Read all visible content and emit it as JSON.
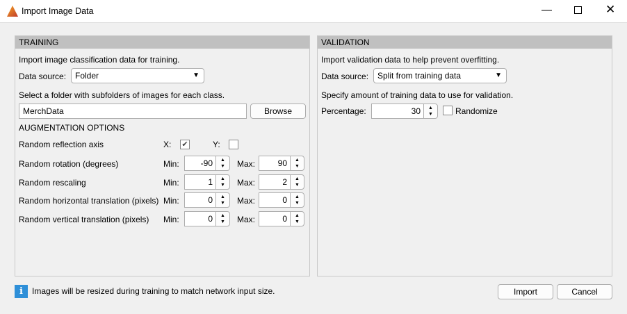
{
  "window": {
    "title": "Import Image Data"
  },
  "training": {
    "header": "TRAINING",
    "intro": "Import image classification data for training.",
    "data_source_label": "Data source:",
    "data_source_value": "Folder",
    "folder_prompt": "Select a folder with subfolders of images for each class.",
    "folder_value": "MerchData",
    "browse_label": "Browse",
    "augmentation_header": "AUGMENTATION OPTIONS",
    "reflection": {
      "label": "Random reflection axis",
      "x_label": "X:",
      "x_checked": true,
      "y_label": "Y:",
      "y_checked": false
    },
    "rows": [
      {
        "label": "Random rotation (degrees)",
        "min_label": "Min:",
        "min": "-90",
        "max_label": "Max:",
        "max": "90"
      },
      {
        "label": "Random rescaling",
        "min_label": "Min:",
        "min": "1",
        "max_label": "Max:",
        "max": "2"
      },
      {
        "label": "Random horizontal translation (pixels)",
        "min_label": "Min:",
        "min": "0",
        "max_label": "Max:",
        "max": "0"
      },
      {
        "label": "Random vertical translation (pixels)",
        "min_label": "Min:",
        "min": "0",
        "max_label": "Max:",
        "max": "0"
      }
    ]
  },
  "validation": {
    "header": "VALIDATION",
    "intro": "Import validation data to help prevent overfitting.",
    "data_source_label": "Data source:",
    "data_source_value": "Split from training data",
    "amount_prompt": "Specify amount of training data to use for validation.",
    "percentage_label": "Percentage:",
    "percentage_value": "30",
    "randomize_label": "Randomize",
    "randomize_checked": false
  },
  "footer": {
    "info_text": "Images will be resized during training to match network input size.",
    "import_label": "Import",
    "cancel_label": "Cancel",
    "info_icon_color": "#2e8fd8"
  }
}
